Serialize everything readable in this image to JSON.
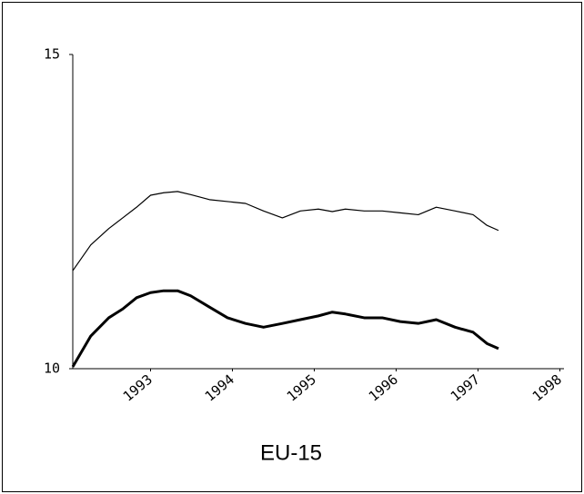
{
  "chart_data": {
    "type": "line",
    "title": "EU-15",
    "x": [
      1992.05,
      1992.27,
      1992.49,
      1992.66,
      1992.83,
      1993.0,
      1993.16,
      1993.33,
      1993.49,
      1993.72,
      1993.94,
      1994.16,
      1994.38,
      1994.61,
      1994.83,
      1995.05,
      1995.22,
      1995.38,
      1995.61,
      1995.83,
      1996.05,
      1996.27,
      1996.49,
      1996.72,
      1996.94,
      1997.11,
      1997.25
    ],
    "series": [
      {
        "color": "#000000",
        "width": 1.2,
        "values": [
          11.56,
          11.97,
          12.23,
          12.4,
          12.57,
          12.76,
          12.8,
          12.82,
          12.77,
          12.69,
          12.66,
          12.63,
          12.51,
          12.4,
          12.51,
          12.54,
          12.5,
          12.54,
          12.51,
          12.51,
          12.48,
          12.45,
          12.57,
          12.51,
          12.45,
          12.28,
          12.2
        ]
      },
      {
        "color": "#000000",
        "width": 3,
        "values": [
          10.03,
          10.52,
          10.81,
          10.95,
          11.13,
          11.21,
          11.24,
          11.24,
          11.16,
          10.98,
          10.81,
          10.72,
          10.66,
          10.72,
          10.78,
          10.84,
          10.9,
          10.87,
          10.81,
          10.81,
          10.75,
          10.72,
          10.78,
          10.66,
          10.58,
          10.4,
          10.32
        ]
      }
    ],
    "xlim": [
      1992.05,
      1998.05
    ],
    "xticks": [
      1993,
      1994,
      1995,
      1996,
      1997,
      1998
    ],
    "ylim": [
      10,
      15
    ],
    "yticks": [
      10,
      15
    ]
  }
}
